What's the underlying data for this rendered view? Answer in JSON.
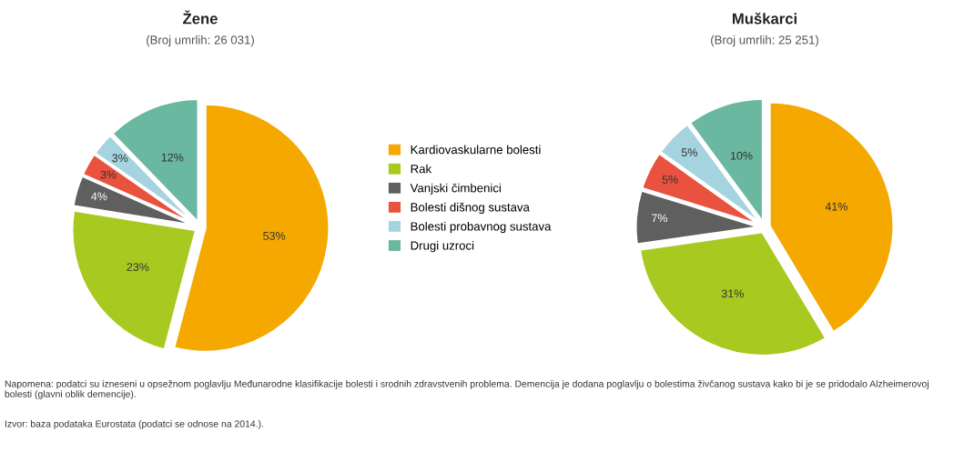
{
  "chart_data": [
    {
      "type": "pie",
      "title": "Žene",
      "subtitle": "(Broj umrlih: 26 031)",
      "categories": [
        "Kardiovaskularne bolesti",
        "Rak",
        "Vanjski čimbenici",
        "Bolesti dišnog sustava",
        "Bolesti probavnog sustava",
        "Drugi uzroci"
      ],
      "values": [
        53,
        23,
        4,
        3,
        3,
        12
      ],
      "colors": [
        "#f5a800",
        "#a8c920",
        "#5f5f5f",
        "#e8523f",
        "#a6d3e0",
        "#6bb8a0"
      ],
      "value_labels": [
        "53%",
        "23%",
        "4%",
        "3%",
        "3%",
        "12%"
      ],
      "legend": "right",
      "annotations": [
        "Napomena: podatci su izneseni u opsežnom poglavlju Međunarodne klasifikacije bolesti i srodnih zdravstvenih problema. Demencija je dodana poglavlju o bolestima živčanog sustava kako bi je se pridodalo Alzheimerovoj bolesti (glavni oblik demencije).",
        "Izvor: baza podataka Eurostata (podatci se odnose na 2014.)."
      ]
    },
    {
      "type": "pie",
      "title": "Muškarci",
      "subtitle": "(Broj umrlih: 25 251)",
      "categories": [
        null,
        null,
        null,
        null,
        null,
        null
      ],
      "values": [
        41,
        31,
        7,
        5,
        5,
        10
      ],
      "colors": [
        "#f5a800",
        "#a8c920",
        "#5f5f5f",
        "#e8523f",
        "#a6d3e0",
        "#6bb8a0"
      ],
      "value_labels": [
        "41%",
        "31%",
        "7%",
        "5%",
        "5%",
        "10%"
      ]
    }
  ]
}
